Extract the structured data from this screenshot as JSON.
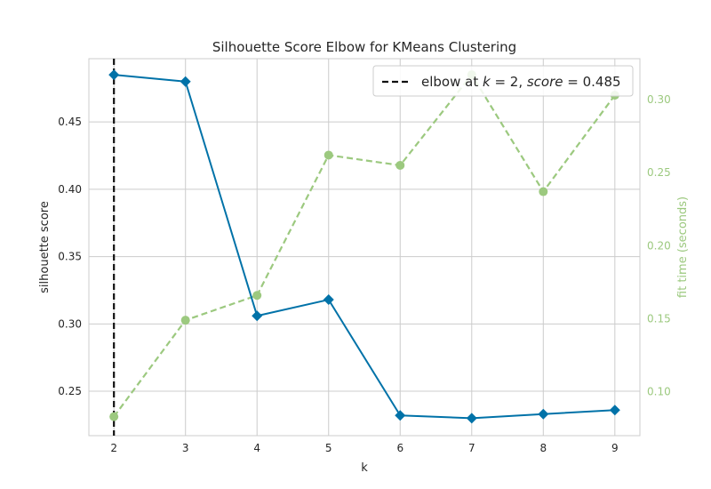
{
  "chart_data": {
    "type": "line",
    "title": "Silhouette Score Elbow for KMeans Clustering",
    "xlabel": "k",
    "ylabel": "silhouette score",
    "y2label": "fit time (seconds)",
    "x": [
      2,
      3,
      4,
      5,
      6,
      7,
      8,
      9
    ],
    "xlim": [
      1.65,
      9.35
    ],
    "ylim": [
      0.217,
      0.497
    ],
    "y2lim": [
      0.07,
      0.328
    ],
    "yticks": [
      "0.25",
      "0.30",
      "0.35",
      "0.40",
      "0.45"
    ],
    "y2ticks": [
      "0.10",
      "0.15",
      "0.20",
      "0.25",
      "0.30"
    ],
    "grid": true,
    "series": [
      {
        "axis": "left",
        "color": "#0072a8",
        "marker": "diamond",
        "style": "solid",
        "values": [
          0.485,
          0.48,
          0.306,
          0.318,
          0.232,
          0.23,
          0.233,
          0.236
        ]
      },
      {
        "axis": "right",
        "color": "#9cc97f",
        "marker": "circle",
        "style": "dashed",
        "values": [
          0.083,
          0.149,
          0.166,
          0.262,
          0.255,
          0.317,
          0.237,
          0.303
        ]
      }
    ],
    "elbow": {
      "k": 2,
      "score": "0.485",
      "color": "#000000"
    },
    "legend": {
      "position": "top-right",
      "text_prefix": "elbow at ",
      "k_symbol": "k",
      "eq_k": " = 2, ",
      "score_symbol": "score",
      "eq_score": " = 0.485"
    }
  }
}
